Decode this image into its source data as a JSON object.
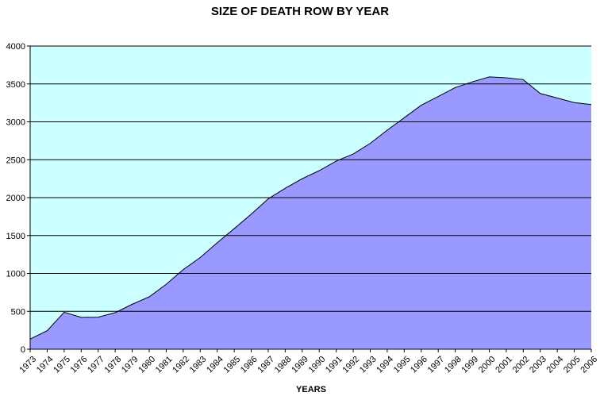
{
  "chart_data": {
    "type": "area",
    "title": "SIZE OF DEATH ROW BY YEAR",
    "xlabel": "YEARS",
    "ylabel": "",
    "ylim": [
      0,
      4000
    ],
    "yticks": [
      0,
      500,
      1000,
      1500,
      2000,
      2500,
      3000,
      3500,
      4000
    ],
    "grid": true,
    "legend": "none",
    "categories": [
      "1973",
      "1974",
      "1975",
      "1976",
      "1977",
      "1978",
      "1979",
      "1980",
      "1981",
      "1982",
      "1983",
      "1984",
      "1985",
      "1986",
      "1987",
      "1988",
      "1989",
      "1990",
      "1991",
      "1992",
      "1993",
      "1994",
      "1995",
      "1996",
      "1997",
      "1998",
      "1999",
      "2000",
      "2001",
      "2002",
      "2003",
      "2004",
      "2005",
      "2006"
    ],
    "values": [
      134,
      244,
      488,
      420,
      423,
      482,
      593,
      691,
      856,
      1050,
      1209,
      1405,
      1591,
      1781,
      1984,
      2124,
      2250,
      2356,
      2482,
      2575,
      2716,
      2890,
      3054,
      3219,
      3335,
      3452,
      3527,
      3593,
      3581,
      3557,
      3374,
      3314,
      3254,
      3228
    ],
    "colors": {
      "plot_background": "#ccffff",
      "area_fill": "#9999ff",
      "area_stroke": "#000000",
      "gridline": "#000000"
    }
  }
}
